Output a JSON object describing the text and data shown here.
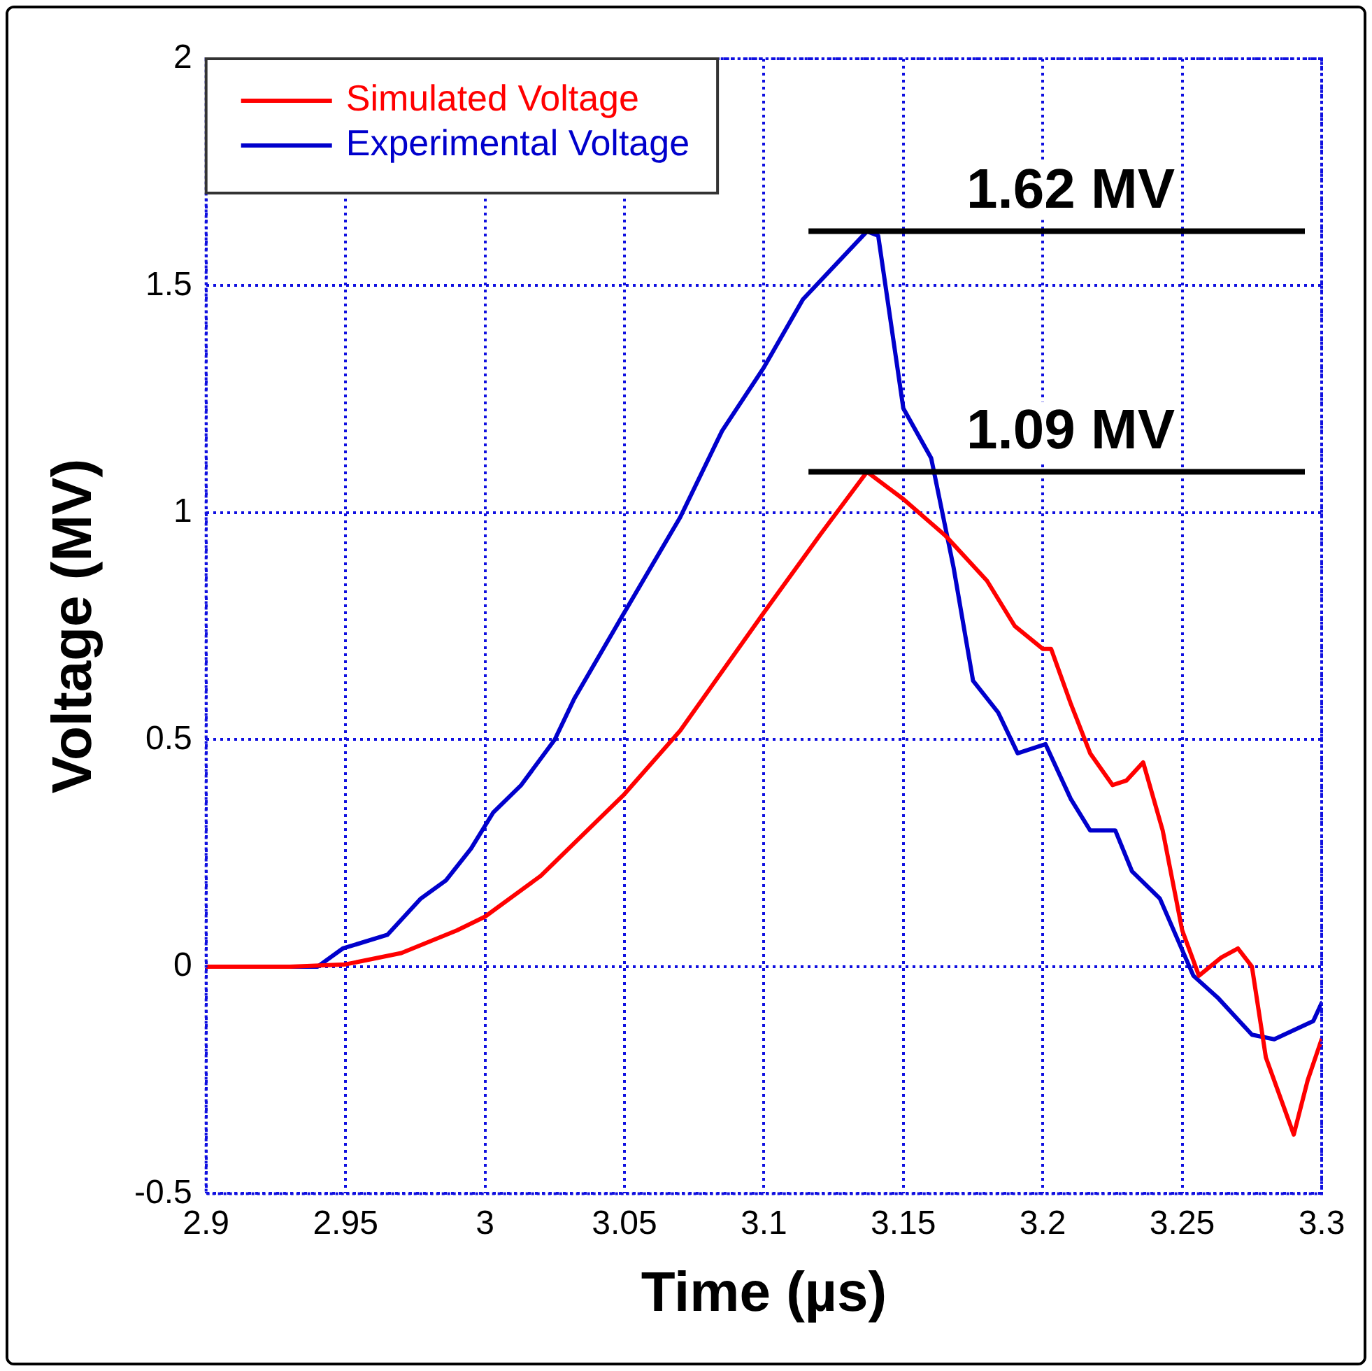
{
  "chart_data": {
    "type": "line",
    "xlabel": "Time (µs)",
    "ylabel": "Voltage (MV)",
    "xlim": [
      2.9,
      3.3
    ],
    "xticks": [
      2.9,
      2.95,
      3,
      3.05,
      3.1,
      3.15,
      3.2,
      3.25,
      3.3
    ],
    "ylim": [
      -0.5,
      2
    ],
    "yticks": [
      -0.5,
      0,
      0.5,
      1,
      1.5,
      2
    ],
    "grid": true,
    "legend": "top left",
    "marker": "none",
    "line_style": "solid",
    "series": [
      {
        "name": "Simulated Voltage",
        "color": "#ff0000",
        "x": [
          2.9,
          2.93,
          2.95,
          2.97,
          2.99,
          3.0,
          3.02,
          3.05,
          3.07,
          3.1,
          3.12,
          3.137,
          3.15,
          3.165,
          3.18,
          3.19,
          3.2,
          3.203,
          3.21,
          3.217,
          3.225,
          3.23,
          3.236,
          3.243,
          3.25,
          3.256,
          3.264,
          3.27,
          3.275,
          3.28,
          3.29,
          3.295,
          3.3
        ],
        "values": [
          0,
          0,
          0.005,
          0.03,
          0.08,
          0.11,
          0.2,
          0.38,
          0.52,
          0.78,
          0.95,
          1.09,
          1.03,
          0.95,
          0.85,
          0.75,
          0.7,
          0.7,
          0.58,
          0.47,
          0.4,
          0.41,
          0.45,
          0.3,
          0.08,
          -0.02,
          0.02,
          0.04,
          0,
          -0.2,
          -0.37,
          -0.25,
          -0.16
        ]
      },
      {
        "name": "Experimental Voltage",
        "color": "#0000cc",
        "x": [
          2.927,
          2.94,
          2.949,
          2.965,
          2.977,
          2.986,
          2.995,
          3.003,
          3.013,
          3.025,
          3.032,
          3.049,
          3.07,
          3.085,
          3.1,
          3.114,
          3.137,
          3.141,
          3.15,
          3.16,
          3.168,
          3.175,
          3.184,
          3.191,
          3.201,
          3.21,
          3.217,
          3.226,
          3.232,
          3.242,
          3.254,
          3.263,
          3.275,
          3.283,
          3.297,
          3.3
        ],
        "values": [
          0,
          0,
          0.04,
          0.07,
          0.15,
          0.19,
          0.26,
          0.34,
          0.4,
          0.5,
          0.59,
          0.77,
          0.99,
          1.18,
          1.32,
          1.47,
          1.62,
          1.61,
          1.23,
          1.12,
          0.88,
          0.63,
          0.56,
          0.47,
          0.49,
          0.37,
          0.3,
          0.3,
          0.21,
          0.15,
          -0.02,
          -0.07,
          -0.15,
          -0.16,
          -0.12,
          -0.08
        ]
      }
    ],
    "ref_lines": [
      {
        "axis": "y",
        "value": 1.62,
        "label": "1.62 MV",
        "color": "#000000"
      },
      {
        "axis": "y",
        "value": 1.09,
        "label": "1.09 MV",
        "color": "#000000"
      }
    ]
  }
}
